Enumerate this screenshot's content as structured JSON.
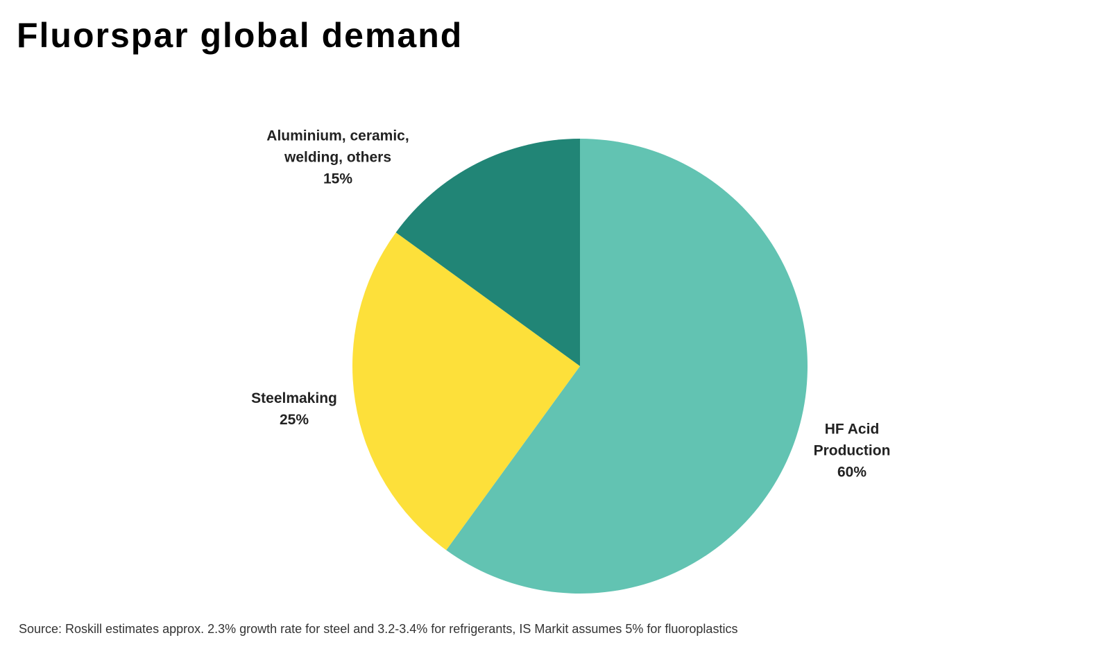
{
  "chart_data": {
    "type": "pie",
    "title": "Fluorspar global demand",
    "categories": [
      "HF Acid Production",
      "Steelmaking",
      "Aluminium, ceramic, welding, others"
    ],
    "values": [
      60,
      25,
      15
    ],
    "value_labels": [
      "60%",
      "25%",
      "15%"
    ],
    "colors": [
      "#62c3b2",
      "#fde03a",
      "#218576"
    ],
    "source": "Source: Roskill estimates approx. 2.3% growth rate for steel and 3.2-3.4% for refrigerants, IS Markit assumes 5% for fluoroplastics"
  }
}
